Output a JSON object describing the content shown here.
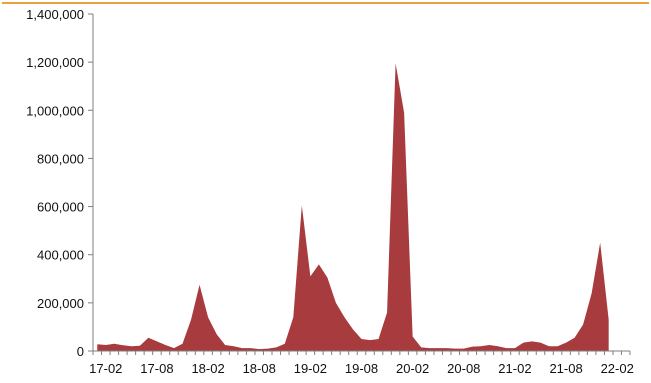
{
  "chart_data": {
    "type": "area",
    "title": "",
    "xlabel": "",
    "ylabel": "",
    "ylim": [
      0,
      1400000
    ],
    "yticks": [
      0,
      200000,
      400000,
      600000,
      800000,
      1000000,
      1200000,
      1400000
    ],
    "ytick_labels": [
      "0",
      "200,000",
      "400,000",
      "600,000",
      "800,000",
      "1,000,000",
      "1,200,000",
      "1,400,000"
    ],
    "xtick_labels": [
      "17-02",
      "17-08",
      "18-02",
      "18-08",
      "19-02",
      "19-08",
      "20-02",
      "20-08",
      "21-02",
      "21-08",
      "22-02"
    ],
    "grid": false,
    "legend": "none",
    "colors": {
      "fill": "#A83B3D",
      "axis": "#7f7f7f",
      "top_rule": "#E8A33A"
    },
    "x": [
      "17-01",
      "17-02",
      "17-03",
      "17-04",
      "17-05",
      "17-06",
      "17-07",
      "17-08",
      "17-09",
      "17-10",
      "17-11",
      "17-12",
      "18-01",
      "18-02",
      "18-03",
      "18-04",
      "18-05",
      "18-06",
      "18-07",
      "18-08",
      "18-09",
      "18-10",
      "18-11",
      "18-12",
      "19-01",
      "19-02",
      "19-03",
      "19-04",
      "19-05",
      "19-06",
      "19-07",
      "19-08",
      "19-09",
      "19-10",
      "19-11",
      "19-12",
      "20-01",
      "20-02",
      "20-03",
      "20-04",
      "20-05",
      "20-06",
      "20-07",
      "20-08",
      "20-09",
      "20-10",
      "20-11",
      "20-12",
      "21-01",
      "21-02",
      "21-03",
      "21-04",
      "21-05",
      "21-06",
      "21-07",
      "21-08",
      "21-09",
      "21-10",
      "21-11",
      "21-12",
      "22-01",
      "22-02",
      "22-03"
    ],
    "values": [
      28000,
      25000,
      30000,
      24000,
      20000,
      22000,
      55000,
      40000,
      25000,
      12000,
      30000,
      130000,
      275000,
      140000,
      70000,
      25000,
      20000,
      12000,
      12000,
      8000,
      10000,
      15000,
      30000,
      140000,
      605000,
      310000,
      360000,
      305000,
      200000,
      140000,
      90000,
      50000,
      45000,
      50000,
      160000,
      1195000,
      990000,
      60000,
      15000,
      12000,
      12000,
      12000,
      10000,
      10000,
      18000,
      20000,
      25000,
      20000,
      12000,
      12000,
      35000,
      40000,
      35000,
      20000,
      20000,
      35000,
      55000,
      110000,
      240000,
      450000,
      130000,
      null,
      null
    ]
  }
}
